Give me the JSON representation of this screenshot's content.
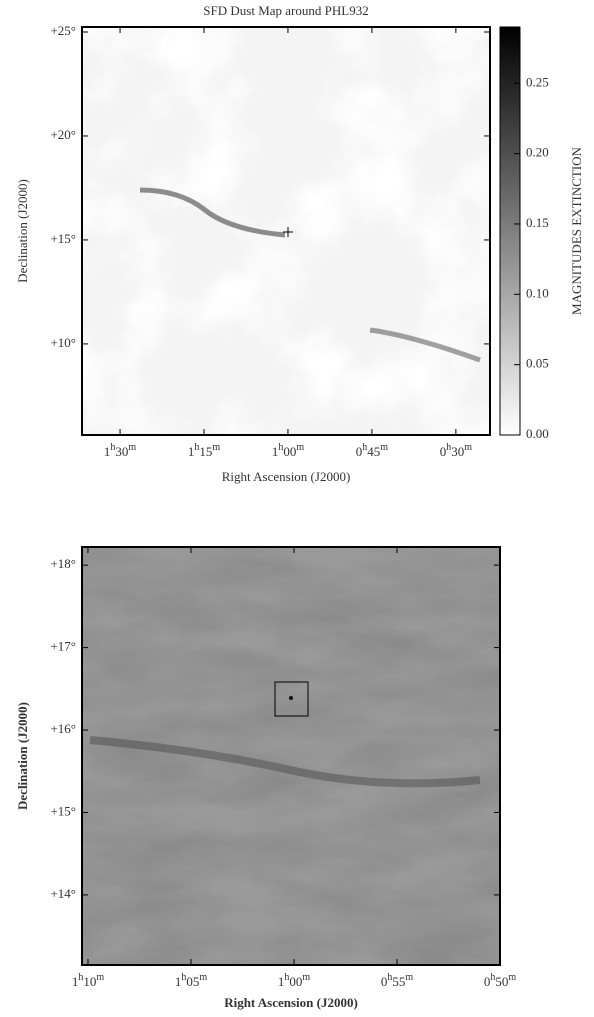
{
  "chart_data": [
    {
      "type": "image",
      "title": "SFD Dust Map around PHL932",
      "xlabel": "Right Ascension (J2000)",
      "ylabel": "Declination (J2000)",
      "xlim": [
        96.8,
        23.9
      ],
      "ylim": [
        5.62,
        25.24
      ],
      "xticks": [
        {
          "value": 90,
          "label": "1h30m"
        },
        {
          "value": 75,
          "label": "1h15m"
        },
        {
          "value": 60,
          "label": "1h00m"
        },
        {
          "value": 45,
          "label": "0h45m"
        },
        {
          "value": 30,
          "label": "0h30m"
        }
      ],
      "yticks": [
        {
          "value": 10,
          "label": "+10°"
        },
        {
          "value": 15,
          "label": "+15°"
        },
        {
          "value": 20,
          "label": "+20°"
        },
        {
          "value": 25,
          "label": "+25°"
        }
      ],
      "colorbar": {
        "label": "MAGNITUDES EXTINCTION",
        "lim": [
          0,
          0.29
        ],
        "ticks": [
          {
            "value": 0,
            "label": "0.00"
          },
          0.05,
          {
            "value": 0.1,
            "label": "0.10"
          },
          0.15,
          {
            "value": 0.2,
            "label": "0.20"
          },
          0.25
        ]
      }
    },
    {
      "type": "image",
      "xlabel": "Right Ascension (J2000)",
      "ylabel": "Declination (J2000)",
      "xlim": [
        70.29,
        50
      ],
      "ylim": [
        13.15,
        18.22
      ],
      "xticks": [
        {
          "value": 70,
          "label": "1h10m"
        },
        {
          "value": 65,
          "label": "1h05m"
        },
        {
          "value": 60,
          "label": "1h00m"
        },
        {
          "value": 55,
          "label": "0h55m"
        },
        {
          "value": 50,
          "label": "0h50m"
        }
      ],
      "yticks": [
        {
          "value": 14,
          "label": "+14°"
        },
        {
          "value": 15,
          "label": "+15°"
        },
        {
          "value": 16,
          "label": "+16°"
        },
        {
          "value": 17,
          "label": "+17°"
        },
        {
          "value": 18,
          "label": "+18°"
        }
      ]
    }
  ]
}
